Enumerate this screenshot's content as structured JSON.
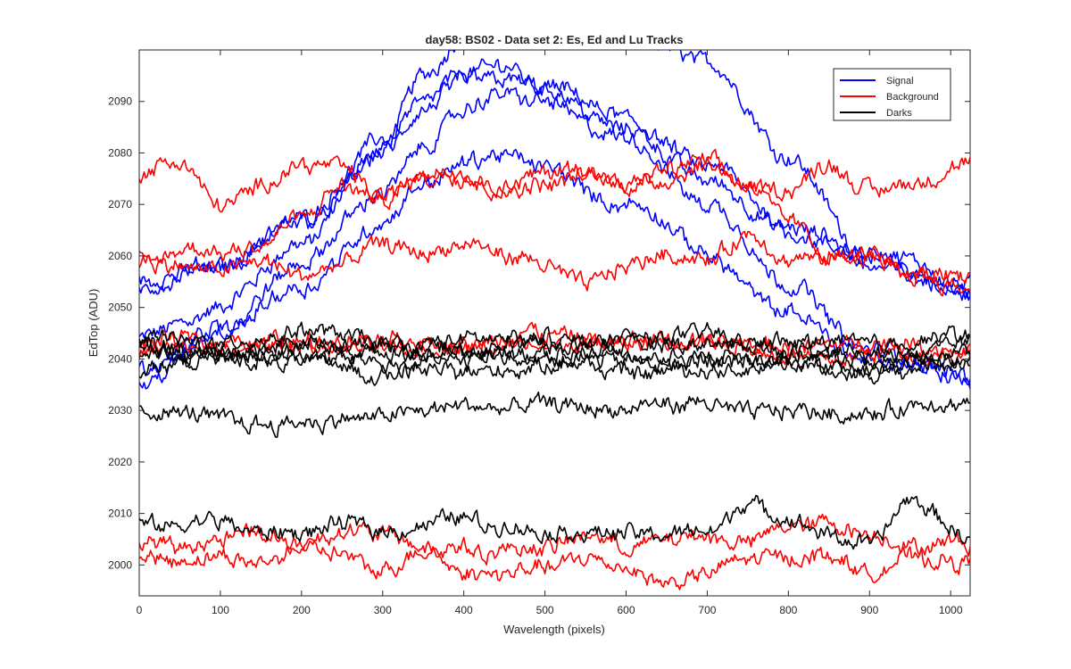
{
  "chart_data": {
    "type": "line",
    "title": "day58: BS02 - Data set 2: Es, Ed and Lu Tracks",
    "xlabel": "Wavelength (pixels)",
    "ylabel": "EdTop (ADU)",
    "xlim": [
      0,
      1024
    ],
    "ylim": [
      1994,
      2100
    ],
    "xticks": [
      0,
      100,
      200,
      300,
      400,
      500,
      600,
      700,
      800,
      900,
      1000
    ],
    "yticks": [
      2000,
      2010,
      2020,
      2030,
      2040,
      2050,
      2060,
      2070,
      2080,
      2090
    ],
    "grid": false,
    "legend": {
      "position": "top-right",
      "entries": [
        {
          "label": "Signal",
          "color": "#0000ff"
        },
        {
          "label": "Background",
          "color": "#ff0000"
        },
        {
          "label": "Darks",
          "color": "#000000"
        }
      ]
    },
    "noise_amplitude": 1.6,
    "series": [
      {
        "group": "Signal",
        "color": "#0000ff",
        "x": [
          0,
          100,
          200,
          300,
          350,
          400,
          450,
          500,
          600,
          700,
          800,
          900,
          1024
        ],
        "y": [
          2044,
          2050,
          2062,
          2080,
          2095,
          2103,
          2106,
          2105,
          2102,
          2098,
          2080,
          2060,
          2052
        ]
      },
      {
        "group": "Signal",
        "color": "#0000ff",
        "x": [
          0,
          100,
          200,
          300,
          350,
          400,
          450,
          500,
          600,
          700,
          800,
          900,
          1024
        ],
        "y": [
          2055,
          2058,
          2068,
          2083,
          2091,
          2096,
          2097,
          2093,
          2085,
          2075,
          2065,
          2060,
          2055
        ]
      },
      {
        "group": "Signal",
        "color": "#0000ff",
        "x": [
          0,
          100,
          200,
          300,
          350,
          400,
          450,
          500,
          600,
          700,
          800,
          900,
          1024
        ],
        "y": [
          2053,
          2057,
          2066,
          2080,
          2087,
          2093,
          2095,
          2093,
          2086,
          2077,
          2065,
          2058,
          2053
        ]
      },
      {
        "group": "Signal",
        "color": "#0000ff",
        "x": [
          0,
          100,
          200,
          300,
          350,
          400,
          450,
          500,
          600,
          700,
          800,
          900,
          1024
        ],
        "y": [
          2035,
          2045,
          2058,
          2072,
          2081,
          2088,
          2091,
          2090,
          2082,
          2070,
          2055,
          2042,
          2036
        ]
      },
      {
        "group": "Signal",
        "color": "#0000ff",
        "x": [
          0,
          100,
          200,
          300,
          350,
          400,
          450,
          500,
          600,
          700,
          800,
          900,
          1024
        ],
        "y": [
          2038,
          2046,
          2055,
          2067,
          2074,
          2078,
          2079,
          2077,
          2070,
          2060,
          2048,
          2040,
          2037
        ]
      },
      {
        "group": "Background",
        "color": "#ff0000",
        "x": [
          0,
          50,
          100,
          150,
          200,
          250,
          300,
          350,
          400,
          450,
          500,
          550,
          600,
          650,
          700,
          750,
          800,
          850,
          900,
          950,
          1024
        ],
        "y": [
          2076,
          2078,
          2070,
          2073,
          2078,
          2078,
          2072,
          2077,
          2075,
          2073,
          2076,
          2077,
          2073,
          2076,
          2078,
          2073,
          2073,
          2078,
          2073,
          2075,
          2077
        ]
      },
      {
        "group": "Background",
        "color": "#ff0000",
        "x": [
          0,
          50,
          100,
          150,
          200,
          250,
          300,
          350,
          400,
          450,
          500,
          550,
          600,
          650,
          700,
          750,
          800,
          850,
          900,
          950,
          1024
        ],
        "y": [
          2058,
          2061,
          2060,
          2063,
          2068,
          2073,
          2070,
          2075,
          2077,
          2074,
          2075,
          2077,
          2074,
          2076,
          2079,
          2075,
          2068,
          2061,
          2060,
          2057,
          2055
        ]
      },
      {
        "group": "Background",
        "color": "#ff0000",
        "x": [
          0,
          50,
          100,
          150,
          200,
          250,
          300,
          350,
          400,
          450,
          500,
          550,
          600,
          650,
          700,
          750,
          800,
          850,
          900,
          950,
          1024
        ],
        "y": [
          2060,
          2058,
          2057,
          2059,
          2056,
          2058,
          2061,
          2060,
          2061,
          2059,
          2057,
          2054,
          2058,
          2061,
          2060,
          2064,
          2058,
          2058,
          2059,
          2056,
          2056
        ]
      },
      {
        "group": "Background",
        "color": "#ff0000",
        "x": [
          0,
          100,
          200,
          300,
          400,
          500,
          600,
          700,
          800,
          900,
          1024
        ],
        "y": [
          2043,
          2043,
          2044,
          2044,
          2042,
          2043,
          2043,
          2043,
          2042,
          2043,
          2042
        ]
      },
      {
        "group": "Background",
        "color": "#ff0000",
        "x": [
          0,
          100,
          200,
          300,
          400,
          500,
          600,
          700,
          800,
          900,
          1024
        ],
        "y": [
          2041,
          2042,
          2043,
          2042,
          2043,
          2044,
          2042,
          2043,
          2041,
          2042,
          2041
        ]
      },
      {
        "group": "Background",
        "color": "#ff0000",
        "x": [
          0,
          50,
          100,
          150,
          200,
          250,
          300,
          350,
          400,
          450,
          500,
          550,
          600,
          650,
          700,
          750,
          800,
          850,
          900,
          950,
          1024
        ],
        "y": [
          2005,
          2003,
          2004,
          2006,
          2004,
          2002,
          1998,
          2002,
          2004,
          2003,
          2003,
          2006,
          2003,
          2005,
          2005,
          2004,
          2008,
          2009,
          2006,
          2004,
          2004
        ]
      },
      {
        "group": "Background",
        "color": "#ff0000",
        "x": [
          0,
          50,
          100,
          150,
          200,
          250,
          300,
          350,
          400,
          450,
          500,
          550,
          600,
          650,
          700,
          750,
          800,
          850,
          900,
          950,
          1024
        ],
        "y": [
          2001,
          2001,
          2002,
          2000,
          2004,
          2007,
          2006,
          2003,
          1999,
          1999,
          1999,
          2001,
          2000,
          1997,
          1999,
          2001,
          2002,
          2003,
          1999,
          2001,
          2000
        ]
      },
      {
        "group": "Darks",
        "color": "#000000",
        "x": [
          0,
          100,
          200,
          300,
          400,
          500,
          600,
          700,
          800,
          900,
          1024
        ],
        "y": [
          2044,
          2043,
          2045,
          2043,
          2044,
          2043,
          2044,
          2045,
          2043,
          2044,
          2045
        ]
      },
      {
        "group": "Darks",
        "color": "#000000",
        "x": [
          0,
          100,
          200,
          300,
          400,
          500,
          600,
          700,
          800,
          900,
          1024
        ],
        "y": [
          2042,
          2041,
          2042,
          2041,
          2042,
          2041,
          2042,
          2041,
          2042,
          2041,
          2042
        ]
      },
      {
        "group": "Darks",
        "color": "#000000",
        "x": [
          0,
          100,
          200,
          300,
          400,
          500,
          600,
          700,
          800,
          900,
          1024
        ],
        "y": [
          2040,
          2040,
          2041,
          2040,
          2041,
          2040,
          2039,
          2040,
          2041,
          2040,
          2040
        ]
      },
      {
        "group": "Darks",
        "color": "#000000",
        "x": [
          0,
          100,
          200,
          300,
          400,
          500,
          600,
          700,
          800,
          900,
          1024
        ],
        "y": [
          2038,
          2039,
          2039,
          2038,
          2039,
          2039,
          2038,
          2039,
          2039,
          2038,
          2039
        ]
      },
      {
        "group": "Darks",
        "color": "#000000",
        "x": [
          0,
          100,
          200,
          300,
          400,
          500,
          600,
          700,
          800,
          900,
          1024
        ],
        "y": [
          2043,
          2042,
          2041,
          2042,
          2041,
          2043,
          2042,
          2041,
          2040,
          2039,
          2044
        ]
      },
      {
        "group": "Darks",
        "color": "#000000",
        "x": [
          0,
          50,
          100,
          150,
          200,
          250,
          300,
          350,
          400,
          450,
          500,
          550,
          600,
          650,
          700,
          750,
          800,
          850,
          900,
          950,
          1024
        ],
        "y": [
          2030,
          2030,
          2029,
          2028,
          2029,
          2029,
          2029,
          2030,
          2031,
          2030,
          2030,
          2030,
          2029,
          2030,
          2030,
          2029,
          2030,
          2030,
          2030,
          2031,
          2030
        ]
      },
      {
        "group": "Darks",
        "color": "#000000",
        "x": [
          0,
          50,
          100,
          150,
          200,
          250,
          300,
          350,
          400,
          450,
          500,
          550,
          600,
          650,
          700,
          750,
          800,
          850,
          900,
          950,
          1024
        ],
        "y": [
          2008,
          2007,
          2008,
          2006,
          2006,
          2007,
          2007,
          2008,
          2010,
          2008,
          2006,
          2006,
          2006,
          2006,
          2007,
          2012,
          2008,
          2005,
          2004,
          2012,
          2005
        ]
      }
    ]
  }
}
